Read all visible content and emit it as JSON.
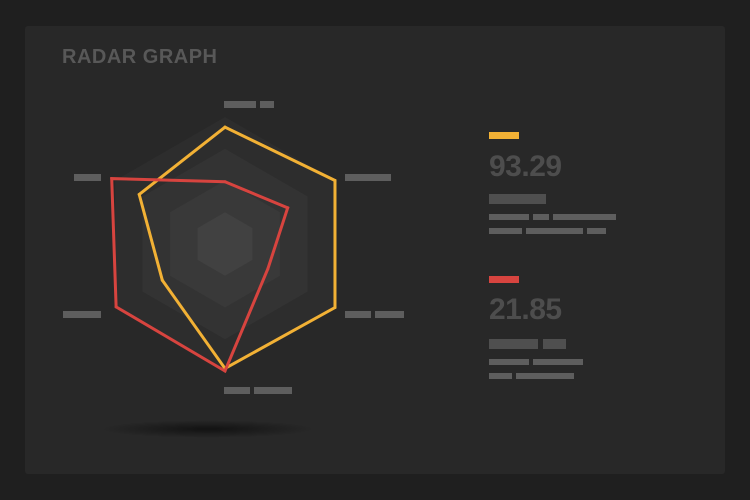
{
  "title": "RADAR GRAPH",
  "colors": {
    "series_a": "#f2b135",
    "series_b": "#d7443f",
    "background": "#1f1f1f",
    "card": "#282828"
  },
  "chart_data": {
    "type": "radar",
    "title": "RADAR GRAPH",
    "axes_count": 6,
    "rmax": 100,
    "rings": 4,
    "series": [
      {
        "values": [
          92,
          100,
          100,
          98,
          57,
          78
        ],
        "color": "#f2b135"
      },
      {
        "values": [
          49,
          57,
          39,
          100,
          99,
          103
        ],
        "color": "#d7443f"
      }
    ]
  },
  "legend": [
    {
      "value": "93.29",
      "color": "#f2b135"
    },
    {
      "value": "21.85",
      "color": "#d7443f"
    }
  ]
}
